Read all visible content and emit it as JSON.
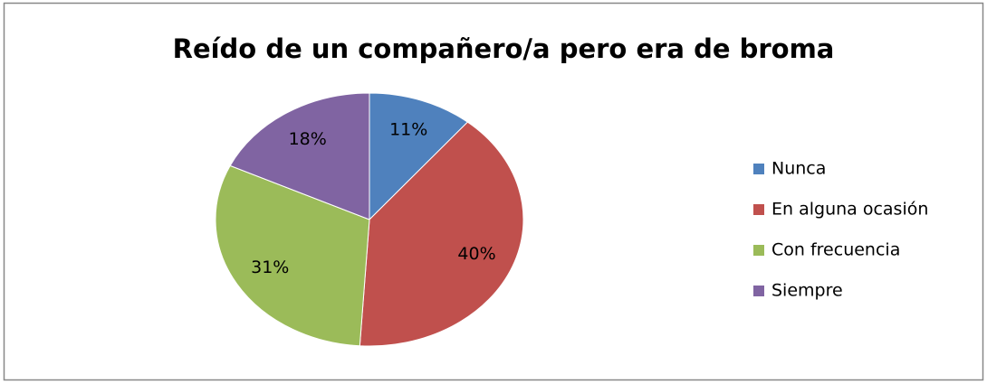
{
  "chart_data": {
    "type": "pie",
    "title": "Reído de un compañero/a pero era de broma",
    "categories": [
      "Nunca",
      "En alguna ocasión",
      "Con frecuencia",
      "Siempre"
    ],
    "values": [
      11,
      40,
      31,
      18
    ],
    "value_labels": [
      "11%",
      "40%",
      "31%",
      "18%"
    ],
    "colors": [
      "#4f81bd",
      "#c0504d",
      "#9bbb59",
      "#8064a2"
    ],
    "legend": "right"
  }
}
